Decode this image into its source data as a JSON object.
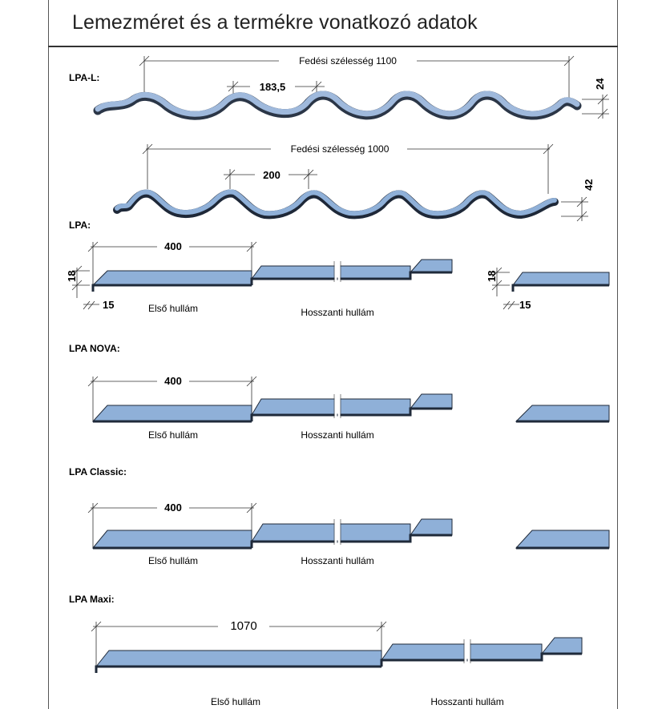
{
  "title": "Lemezméret és a termékre vonatkozó adatok",
  "colors": {
    "profile_fill": "#8fb0d8",
    "profile_edge": "#1f2a3a",
    "dim_line": "#333333"
  },
  "sections": {
    "lpa_l": {
      "label": "LPA-L:",
      "cover_width_label": "Fedési szélesség 1100",
      "wave_pitch": "183,5",
      "height": "24"
    },
    "lpa_wave": {
      "cover_width_label": "Fedési szélesség 1000",
      "wave_pitch": "200",
      "height": "42"
    },
    "lpa": {
      "label": "LPA:",
      "length": "400",
      "step_height": "18",
      "nose": "15",
      "nose_right": "15",
      "first_wave": "Első hullám",
      "long_wave": "Hosszanti hullám"
    },
    "lpa_nova": {
      "label": "LPA NOVA:",
      "length": "400",
      "first_wave": "Első hullám",
      "long_wave": "Hosszanti hullám"
    },
    "lpa_classic": {
      "label": "LPA Classic:",
      "length": "400",
      "first_wave": "Első hullám",
      "long_wave": "Hosszanti hullám"
    },
    "lpa_maxi": {
      "label": "LPA Maxi:",
      "length": "1070",
      "first_wave": "Első hullám",
      "long_wave": "Hosszanti hullám"
    }
  }
}
